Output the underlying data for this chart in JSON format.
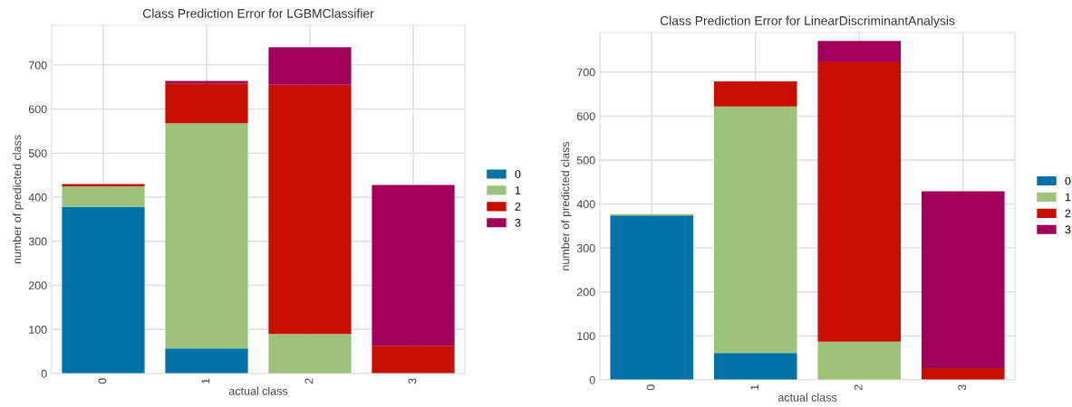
{
  "chart_data": [
    {
      "type": "bar",
      "title": "Class Prediction Error for LGBMClassifier",
      "xlabel": "actual class",
      "ylabel": "number of predicted class",
      "categories": [
        "0",
        "1",
        "2",
        "3"
      ],
      "stacked": true,
      "ylim": [
        0,
        790
      ],
      "yticks": [
        0,
        100,
        200,
        300,
        400,
        500,
        600,
        700
      ],
      "grid": true,
      "legend": "right",
      "series": [
        {
          "name": "0",
          "color": "#0072a6",
          "values": [
            378,
            57,
            0,
            0
          ]
        },
        {
          "name": "1",
          "color": "#9dc37a",
          "values": [
            47,
            511,
            90,
            0
          ]
        },
        {
          "name": "2",
          "color": "#c70e00",
          "values": [
            5,
            90,
            565,
            63
          ]
        },
        {
          "name": "3",
          "color": "#a1005a",
          "values": [
            0,
            6,
            85,
            365
          ]
        }
      ]
    },
    {
      "type": "bar",
      "title": "Class Prediction Error for LinearDiscriminantAnalysis",
      "xlabel": "actual class",
      "ylabel": "number of predicted class",
      "categories": [
        "0",
        "1",
        "2",
        "3"
      ],
      "stacked": true,
      "ylim": [
        0,
        790
      ],
      "yticks": [
        0,
        100,
        200,
        300,
        400,
        500,
        600,
        700
      ],
      "grid": true,
      "legend": "right",
      "series": [
        {
          "name": "0",
          "color": "#0072a6",
          "values": [
            374,
            61,
            0,
            0
          ]
        },
        {
          "name": "1",
          "color": "#9dc37a",
          "values": [
            3,
            561,
            87,
            0
          ]
        },
        {
          "name": "2",
          "color": "#c70e00",
          "values": [
            0,
            57,
            637,
            27
          ]
        },
        {
          "name": "3",
          "color": "#a1005a",
          "values": [
            0,
            0,
            47,
            402
          ]
        }
      ]
    }
  ]
}
